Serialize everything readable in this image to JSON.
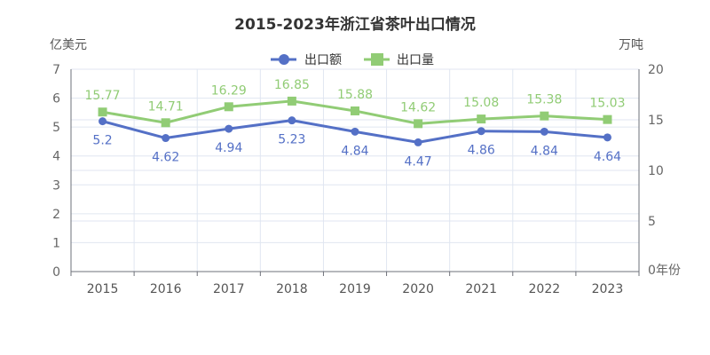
{
  "chart_data": {
    "type": "line",
    "title": "2015-2023年浙江省茶叶出口情况",
    "categories": [
      "2015",
      "2016",
      "2017",
      "2018",
      "2019",
      "2020",
      "2021",
      "2022",
      "2023"
    ],
    "x_axis_unit": "年份",
    "y_axis_left": {
      "unit": "亿美元",
      "range": [
        0,
        7
      ],
      "ticks": [
        "0",
        "1",
        "2",
        "3",
        "4",
        "5",
        "6",
        "7"
      ]
    },
    "y_axis_right": {
      "unit": "万吨",
      "range": [
        0,
        20
      ],
      "ticks": [
        "0",
        "5",
        "10",
        "15",
        "20"
      ]
    },
    "grid": true,
    "legend_position": "top-center",
    "series": [
      {
        "name": "出口额",
        "axis": "left",
        "color": "#5470c6",
        "marker": "circle",
        "values": [
          5.2,
          4.62,
          4.94,
          5.23,
          4.84,
          4.47,
          4.86,
          4.84,
          4.64
        ],
        "labels": [
          "5.2",
          "4.62",
          "4.94",
          "5.23",
          "4.84",
          "4.47",
          "4.86",
          "4.84",
          "4.64"
        ]
      },
      {
        "name": "出口量",
        "axis": "right",
        "color": "#91cc75",
        "marker": "square",
        "values": [
          15.77,
          14.71,
          16.29,
          16.85,
          15.88,
          14.62,
          15.08,
          15.38,
          15.03
        ],
        "labels": [
          "15.77",
          "14.71",
          "16.29",
          "16.85",
          "15.88",
          "14.62",
          "15.08",
          "15.38",
          "15.03"
        ]
      }
    ]
  }
}
